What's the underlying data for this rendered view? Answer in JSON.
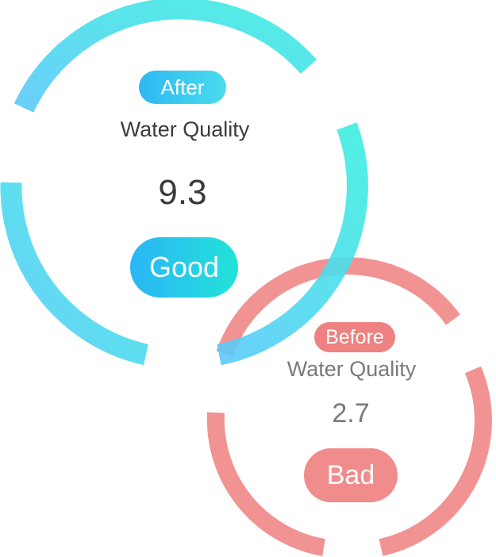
{
  "after": {
    "tag": "After",
    "title": "Water Quality",
    "score": "9.3",
    "status": "Good",
    "colors": {
      "start": "#33c1f5",
      "end": "#49ecd7"
    }
  },
  "before": {
    "tag": "Before",
    "title": "Water Quality",
    "score": "2.7",
    "status": "Bad",
    "color": "#f08a8a"
  }
}
